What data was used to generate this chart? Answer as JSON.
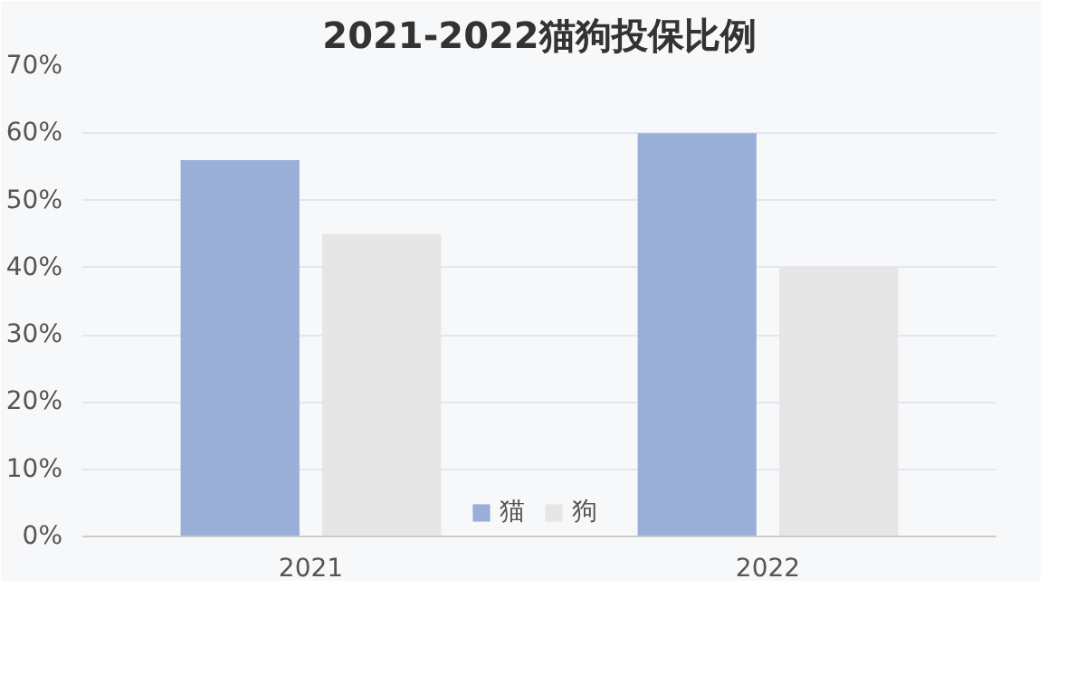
{
  "chart_data": {
    "type": "bar",
    "title": "2021-2022猫狗投保比例",
    "categories": [
      "2021",
      "2022"
    ],
    "series": [
      {
        "name": "猫",
        "color": "#9aafd8",
        "values": [
          0.56,
          0.6
        ]
      },
      {
        "name": "狗",
        "color": "#e6e6e6",
        "values": [
          0.45,
          0.4
        ]
      }
    ],
    "ylim": [
      0,
      0.7
    ],
    "yticks": [
      {
        "value": 0,
        "label": "0%"
      },
      {
        "value": 0.1,
        "label": "10%"
      },
      {
        "value": 0.2,
        "label": "20%"
      },
      {
        "value": 0.3,
        "label": "30%"
      },
      {
        "value": 0.4,
        "label": "40%"
      },
      {
        "value": 0.5,
        "label": "50%"
      },
      {
        "value": 0.6,
        "label": "60%"
      },
      {
        "value": 0.7,
        "label": "70%"
      }
    ],
    "grid": "y",
    "legend": "bottom"
  }
}
